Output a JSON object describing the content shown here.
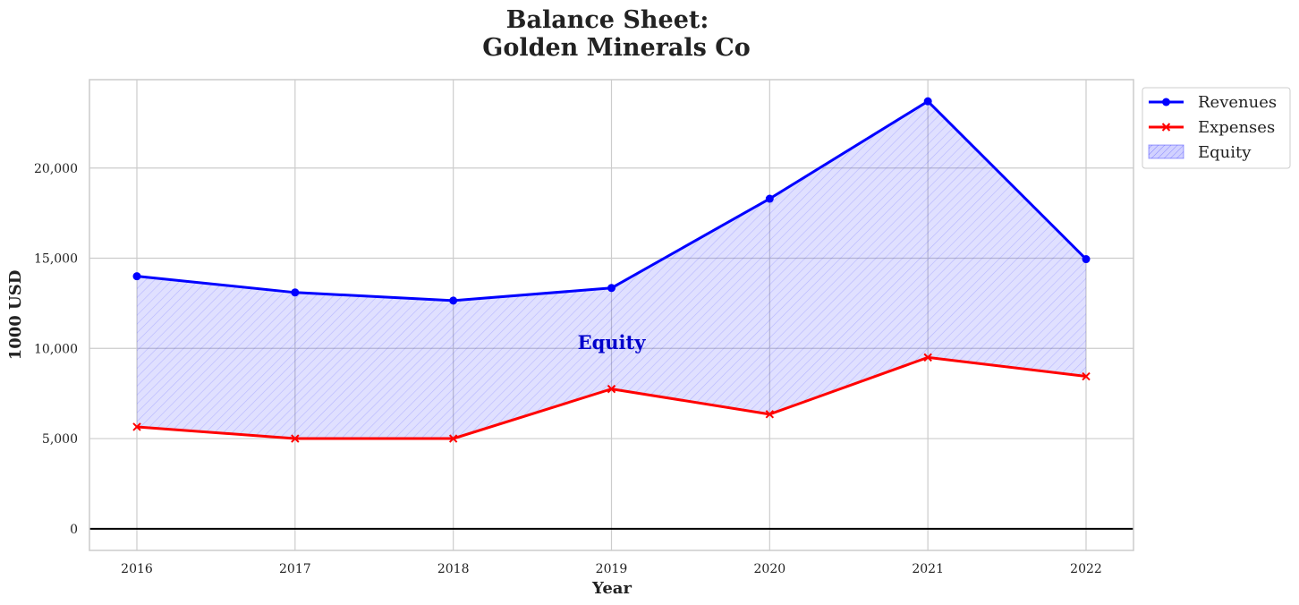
{
  "chart_data": {
    "type": "line",
    "title_line1": "Balance Sheet:",
    "title_line2": "Golden Minerals Co",
    "xlabel": "Year",
    "ylabel": "1000 USD",
    "x": [
      "2016",
      "2017",
      "2018",
      "2019",
      "2020",
      "2021",
      "2022"
    ],
    "series": [
      {
        "name": "Revenues",
        "values": [
          14000,
          13100,
          12650,
          13350,
          18300,
          23700,
          14950
        ],
        "color": "#0000ff",
        "marker": "circle"
      },
      {
        "name": "Expenses",
        "values": [
          5650,
          5000,
          5000,
          7750,
          6350,
          9500,
          8450
        ],
        "color": "#ff0000",
        "marker": "x"
      }
    ],
    "fill": {
      "name": "Equity",
      "between": [
        "Revenues",
        "Expenses"
      ],
      "color": "#0000ff",
      "alpha": 0.12,
      "hatch": "diagonal"
    },
    "annotation": {
      "text": "Equity",
      "x": "2019",
      "y": 10300,
      "color": "#0000cc"
    },
    "ylim": [
      -1200,
      24900
    ],
    "yticks": [
      0,
      5000,
      10000,
      15000,
      20000
    ],
    "ytick_labels": [
      "0",
      "5,000",
      "10,000",
      "15,000",
      "20,000"
    ],
    "zero_line": true,
    "grid": true,
    "legend_position": "outside-top-right"
  }
}
